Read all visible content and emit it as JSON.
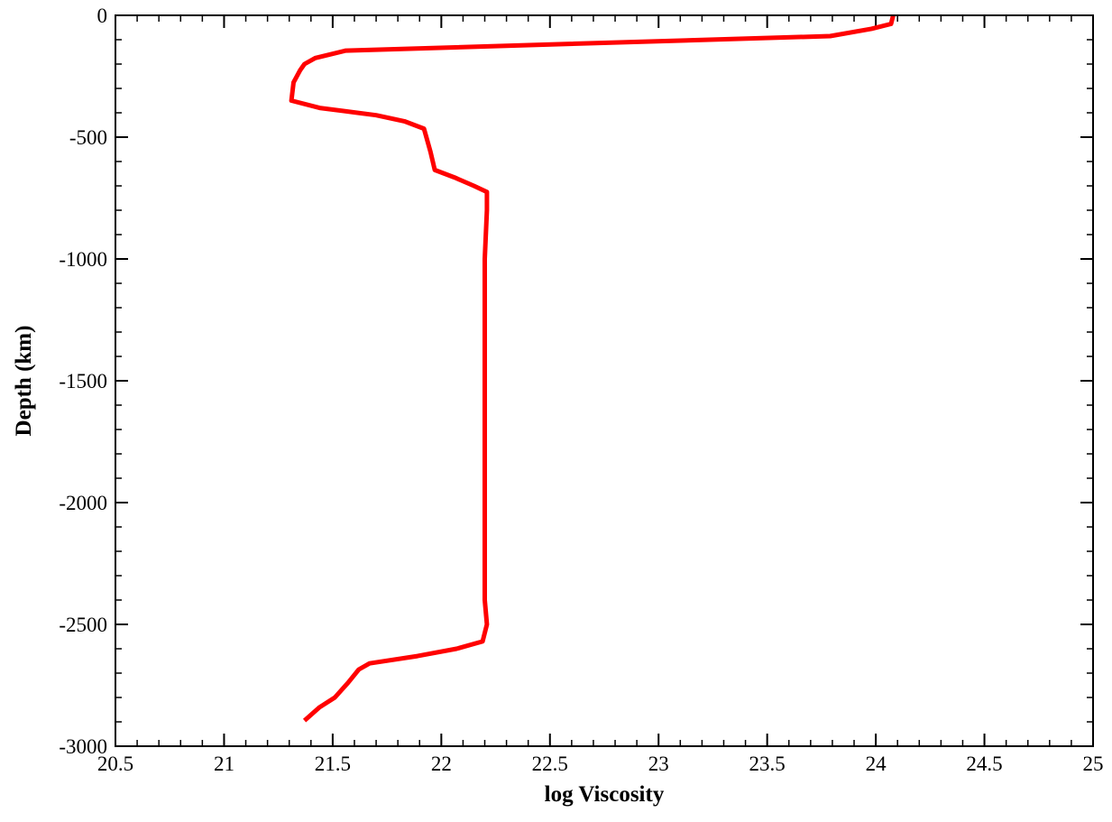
{
  "chart_data": {
    "type": "line",
    "title": "",
    "xlabel": "log Viscosity",
    "ylabel": "Depth (km)",
    "xlim": [
      20.5,
      25
    ],
    "ylim": [
      -3000,
      0
    ],
    "x_ticks": [
      20.5,
      21,
      21.5,
      22,
      22.5,
      23,
      23.5,
      24,
      24.5,
      25
    ],
    "x_tick_labels": [
      "20.5",
      "21",
      "21.5",
      "22",
      "22.5",
      "23",
      "23.5",
      "24",
      "24.5",
      "25"
    ],
    "y_ticks": [
      0,
      -500,
      -1000,
      -1500,
      -2000,
      -2500,
      -3000
    ],
    "y_tick_labels": [
      "0",
      "-500",
      "-1000",
      "-1500",
      "-2000",
      "-2500",
      "-3000"
    ],
    "x_minor_step": 0.1,
    "y_minor_step": 100,
    "grid": false,
    "legend": "none",
    "series": [
      {
        "color": "#ff0000",
        "x": [
          24.08,
          24.07,
          23.98,
          23.79,
          21.56,
          21.42,
          21.37,
          21.35,
          21.32,
          21.31,
          21.44,
          21.7,
          21.83,
          21.92,
          21.95,
          21.97,
          22.06,
          22.15,
          22.21,
          22.21,
          22.2,
          22.2,
          22.2,
          22.2,
          22.2,
          22.21,
          22.19,
          22.07,
          21.89,
          21.67,
          21.62,
          21.57,
          21.51,
          21.44,
          21.37
        ],
        "y": [
          0,
          -35,
          -55,
          -85,
          -145,
          -175,
          -200,
          -225,
          -275,
          -350,
          -380,
          -410,
          -435,
          -465,
          -560,
          -635,
          -665,
          -700,
          -725,
          -800,
          -1000,
          -1500,
          -2000,
          -2300,
          -2400,
          -2500,
          -2570,
          -2600,
          -2630,
          -2660,
          -2685,
          -2740,
          -2800,
          -2840,
          -2895
        ]
      }
    ]
  }
}
